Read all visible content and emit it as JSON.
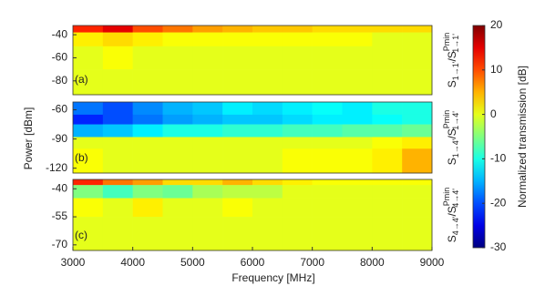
{
  "chart_data": {
    "type": "heatmap",
    "colormap": "jet",
    "x_label": "Frequency [MHz]",
    "y_label": "Power [dBm]",
    "xlim": [
      3000,
      9000
    ],
    "xticks": [
      3000,
      4000,
      5000,
      6000,
      7000,
      8000,
      9000
    ],
    "x_edges": [
      3000,
      3500,
      4000,
      4500,
      5000,
      5500,
      6000,
      6500,
      7000,
      7500,
      8000,
      8500,
      9000
    ],
    "clim": [
      -30,
      20
    ],
    "colorbar_ticks": [
      20,
      10,
      0,
      -10,
      -20,
      -30
    ],
    "colorbar_label": "Normalized transmission [dB]",
    "panels": [
      {
        "label": "(a)",
        "ylim": [
          -92,
          -32
        ],
        "yticks": [
          -40,
          -60,
          -80
        ],
        "y_edges": [
          -32,
          -38,
          -50,
          -70,
          -92
        ],
        "right_label": {
          "s": "S",
          "sub": "1→1'",
          "sep": "/S",
          "sup": "Pmin",
          "sub2": "1→1'"
        },
        "z": [
          [
            12,
            15,
            10,
            8,
            6,
            5,
            4,
            4,
            3,
            3,
            3,
            3
          ],
          [
            2,
            3,
            2,
            1,
            1,
            1,
            1,
            1,
            1,
            1,
            0,
            0
          ],
          [
            0,
            1,
            0,
            0,
            0,
            0,
            0,
            0,
            0,
            0,
            0,
            0
          ],
          [
            0,
            0,
            0,
            0,
            0,
            0,
            0,
            0,
            0,
            0,
            0,
            0
          ]
        ]
      },
      {
        "label": "(b)",
        "ylim": [
          -125,
          -52
        ],
        "yticks": [
          -60,
          -90,
          -120
        ],
        "y_edges": [
          -52,
          -65,
          -75,
          -88,
          -100,
          -125
        ],
        "right_label": {
          "s": "S",
          "sub": "1→4'",
          "sep": "/S",
          "sup": "Pmin",
          "sub2": "1→4'"
        },
        "z": [
          [
            -18,
            -20,
            -17,
            -15,
            -14,
            -12,
            -13,
            -12,
            -11,
            -12,
            -10,
            -10
          ],
          [
            -22,
            -20,
            -18,
            -16,
            -15,
            -14,
            -14,
            -13,
            -12,
            -12,
            -11,
            -10
          ],
          [
            -15,
            -14,
            -12,
            -10,
            -10,
            -9,
            -9,
            -8,
            -8,
            -7,
            -7,
            -6
          ],
          [
            0,
            0,
            0,
            0,
            0,
            0,
            0,
            0,
            0,
            0,
            1,
            2
          ],
          [
            1,
            0,
            0,
            0,
            0,
            0,
            0,
            1,
            1,
            1,
            2,
            5
          ]
        ]
      },
      {
        "label": "(c)",
        "ylim": [
          -73,
          -35
        ],
        "yticks": [
          -40,
          -55,
          -70
        ],
        "y_edges": [
          -35,
          -38,
          -45,
          -55,
          -73
        ],
        "right_label": {
          "s": "S",
          "sub": "4→4'",
          "sep": "/S",
          "sup": "Pmin",
          "sub2": "4→4'"
        },
        "z": [
          [
            12,
            8,
            6,
            3,
            3,
            5,
            3,
            2,
            1,
            1,
            1,
            1
          ],
          [
            -5,
            -8,
            -5,
            -6,
            -3,
            -2,
            -2,
            0,
            0,
            0,
            0,
            0
          ],
          [
            1,
            0,
            2,
            0,
            0,
            1,
            0,
            0,
            0,
            0,
            0,
            0
          ],
          [
            0,
            0,
            0,
            0,
            0,
            0,
            0,
            0,
            0,
            0,
            0,
            0
          ]
        ]
      }
    ]
  }
}
